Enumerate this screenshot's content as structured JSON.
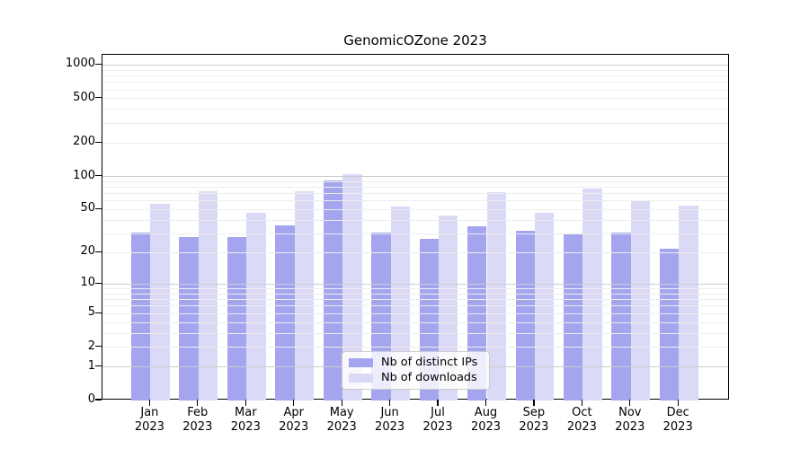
{
  "title": "GenomicOZone 2023",
  "chart_data": {
    "type": "bar",
    "title": "GenomicOZone 2023",
    "categories": [
      "Jan 2023",
      "Feb 2023",
      "Mar 2023",
      "Apr 2023",
      "May 2023",
      "Jun 2023",
      "Jul 2023",
      "Aug 2023",
      "Sep 2023",
      "Oct 2023",
      "Nov 2023",
      "Dec 2023"
    ],
    "month_labels": [
      "Jan",
      "Feb",
      "Mar",
      "Apr",
      "May",
      "Jun",
      "Jul",
      "Aug",
      "Sep",
      "Oct",
      "Nov",
      "Dec"
    ],
    "year_label": "2023",
    "series": [
      {
        "name": "Nb of distinct IPs",
        "color": "#a4a4ef",
        "values": [
          31,
          28,
          28,
          36,
          92,
          31,
          27,
          35,
          32,
          30,
          31,
          22
        ]
      },
      {
        "name": "Nb of downloads",
        "color": "#dadaf6",
        "values": [
          57,
          74,
          47,
          74,
          104,
          53,
          44,
          72,
          47,
          78,
          61,
          54
        ]
      }
    ],
    "xlabel": "",
    "ylabel": "",
    "y_scale": "log1p",
    "y_tick_values": [
      0,
      1,
      2,
      5,
      10,
      20,
      50,
      100,
      200,
      500,
      1000
    ],
    "y_tick_labels": [
      "0",
      "1",
      "2",
      "5",
      "10",
      "20",
      "50",
      "100",
      "200",
      "500",
      "1000"
    ],
    "ylim": [
      0,
      1215
    ],
    "grid": "horizontal, log minor + decade major, drawn over bars",
    "legend_position": "lower center inside plot"
  },
  "colors": {
    "distinct_ips_bar": "#a4a4ef",
    "downloads_bar": "#dadaf6",
    "grid_major": "#cccccc",
    "grid_minor": "#ededed",
    "axis": "#000000",
    "legend_border": "#cccccc",
    "background": "#ffffff"
  }
}
